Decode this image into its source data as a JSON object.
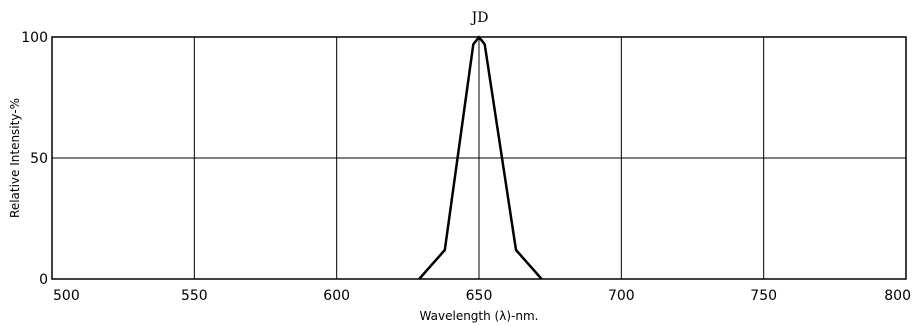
{
  "chart_data": {
    "type": "line",
    "title": "JD",
    "xlabel": "Wavelength (λ)-nm.",
    "ylabel": "Relative Intensity-%",
    "xlim": [
      500,
      800
    ],
    "ylim": [
      0,
      100
    ],
    "x_ticks": [
      500,
      550,
      600,
      650,
      700,
      750,
      800
    ],
    "y_ticks": [
      0,
      50,
      100
    ],
    "grid": true,
    "series": [
      {
        "color": "#000000",
        "x": [
          629,
          638,
          648,
          650,
          652,
          663,
          672
        ],
        "y": [
          0,
          12,
          97,
          100,
          97,
          12,
          0
        ]
      }
    ]
  }
}
